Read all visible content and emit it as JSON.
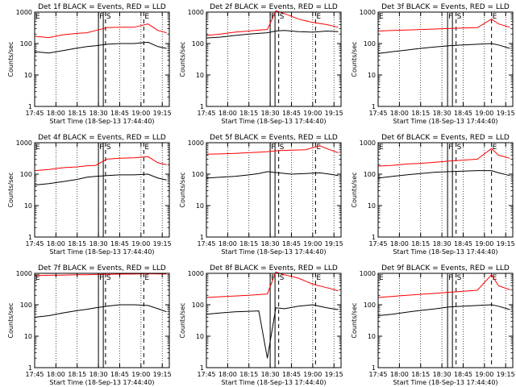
{
  "figure": {
    "x_tick_labels": [
      "17:45",
      "18:00",
      "18:15",
      "18:30",
      "18:45",
      "19:00",
      "19:15"
    ],
    "y_tick_labels": [
      "1",
      "10",
      "100",
      "1000"
    ],
    "x_label": "Start Time (18-Sep-13 17:44:40)",
    "y_label": "Counts/sec",
    "colors": {
      "events": "#000000",
      "lld": "#ff0000",
      "axes": "#000000"
    }
  },
  "chart_data": [
    {
      "type": "line",
      "title": "Det 1f BLACK = Events, RED = LLD",
      "xlabel": "Start Time (18-Sep-13 17:44:40)",
      "ylabel": "Counts/sec",
      "xlim": [
        "17:45",
        "19:20"
      ],
      "ylim": [
        1,
        1000
      ],
      "yscale": "log",
      "markers": [
        {
          "label": "E",
          "x": "17:45"
        },
        {
          "label": "F",
          "x": "18:30"
        },
        {
          "label": "S",
          "x": "18:35"
        },
        {
          "label": "E",
          "x": "19:02"
        }
      ],
      "series": [
        {
          "x": [
            "17:45",
            "17:55",
            "18:05",
            "18:15",
            "18:22",
            "18:28",
            "18:36",
            "18:45",
            "18:55",
            "19:05",
            "19:12",
            "19:18"
          ],
          "values": [
            170,
            155,
            190,
            210,
            220,
            260,
            320,
            330,
            330,
            420,
            260,
            220
          ]
        },
        {
          "x": [
            "17:45",
            "17:55",
            "18:05",
            "18:15",
            "18:22",
            "18:28",
            "18:36",
            "18:45",
            "18:55",
            "19:05",
            "19:12",
            "19:18"
          ],
          "values": [
            55,
            50,
            60,
            72,
            80,
            85,
            95,
            100,
            100,
            110,
            80,
            70
          ]
        }
      ]
    },
    {
      "type": "line",
      "title": "Det 2f BLACK = Events, RED = LLD",
      "xlabel": "Start Time (18-Sep-13 17:44:40)",
      "ylabel": "Counts/sec",
      "xlim": [
        "17:45",
        "19:20"
      ],
      "ylim": [
        1,
        1000
      ],
      "yscale": "log",
      "markers": [
        {
          "label": "F",
          "x": "18:30"
        },
        {
          "label": "S",
          "x": "18:36"
        },
        {
          "label": "E",
          "x": "19:02"
        }
      ],
      "series": [
        {
          "x": [
            "17:45",
            "17:55",
            "18:05",
            "18:15",
            "18:22",
            "18:28",
            "18:34",
            "18:40",
            "18:50",
            "19:00",
            "19:10",
            "19:18"
          ],
          "values": [
            180,
            200,
            230,
            250,
            270,
            280,
            1100,
            900,
            600,
            470,
            400,
            330
          ]
        },
        {
          "x": [
            "17:45",
            "17:55",
            "18:05",
            "18:15",
            "18:22",
            "18:28",
            "18:34",
            "18:40",
            "18:50",
            "19:00",
            "19:10",
            "19:18"
          ],
          "values": [
            150,
            160,
            180,
            200,
            210,
            220,
            250,
            260,
            240,
            230,
            250,
            240
          ]
        }
      ]
    },
    {
      "type": "line",
      "title": "Det 3f BLACK = Events, RED = LLD",
      "xlabel": "Start Time (18-Sep-13 17:44:40)",
      "ylabel": "Counts/sec",
      "xlim": [
        "17:45",
        "19:20"
      ],
      "ylim": [
        1,
        1000
      ],
      "yscale": "log",
      "markers": [
        {
          "label": "E",
          "x": "17:45"
        },
        {
          "label": "F",
          "x": "18:34"
        },
        {
          "label": "S",
          "x": "18:40"
        },
        {
          "label": "E",
          "x": "19:05"
        }
      ],
      "series": [
        {
          "x": [
            "17:45",
            "17:55",
            "18:05",
            "18:15",
            "18:25",
            "18:35",
            "18:45",
            "18:55",
            "19:05",
            "19:10",
            "19:18"
          ],
          "values": [
            250,
            260,
            270,
            280,
            290,
            300,
            310,
            320,
            600,
            420,
            330
          ]
        },
        {
          "x": [
            "17:45",
            "17:55",
            "18:05",
            "18:15",
            "18:25",
            "18:35",
            "18:45",
            "18:55",
            "19:05",
            "19:10",
            "19:18"
          ],
          "values": [
            48,
            55,
            62,
            70,
            78,
            85,
            90,
            95,
            100,
            90,
            70
          ]
        }
      ]
    },
    {
      "type": "line",
      "title": "Det 4f BLACK = Events, RED = LLD",
      "xlabel": "Start Time (18-Sep-13 17:44:40)",
      "ylabel": "Counts/sec",
      "xlim": [
        "17:45",
        "19:20"
      ],
      "ylim": [
        1,
        1000
      ],
      "yscale": "log",
      "markers": [
        {
          "label": "E",
          "x": "17:45"
        },
        {
          "label": "F",
          "x": "18:30"
        },
        {
          "label": "S",
          "x": "18:35"
        },
        {
          "label": "E",
          "x": "19:02"
        }
      ],
      "series": [
        {
          "x": [
            "17:45",
            "17:55",
            "18:05",
            "18:15",
            "18:22",
            "18:28",
            "18:36",
            "18:45",
            "18:55",
            "19:05",
            "19:12",
            "19:18"
          ],
          "values": [
            130,
            140,
            160,
            170,
            185,
            190,
            300,
            320,
            330,
            360,
            230,
            200
          ]
        },
        {
          "x": [
            "17:45",
            "17:55",
            "18:05",
            "18:15",
            "18:22",
            "18:28",
            "18:36",
            "18:45",
            "18:55",
            "19:05",
            "19:12",
            "19:18"
          ],
          "values": [
            45,
            50,
            58,
            68,
            80,
            85,
            90,
            95,
            95,
            100,
            75,
            65
          ]
        }
      ]
    },
    {
      "type": "line",
      "title": "Det 5f BLACK = Events, RED = LLD",
      "xlabel": "Start Time (18-Sep-13 17:44:40)",
      "ylabel": "Counts/sec",
      "xlim": [
        "17:45",
        "19:20"
      ],
      "ylim": [
        1,
        1000
      ],
      "yscale": "log",
      "markers": [
        {
          "label": "F",
          "x": "18:30"
        },
        {
          "label": "S",
          "x": "18:36"
        },
        {
          "label": "E",
          "x": "19:02"
        }
      ],
      "series": [
        {
          "x": [
            "17:45",
            "17:55",
            "18:05",
            "18:15",
            "18:22",
            "18:28",
            "18:36",
            "18:45",
            "18:55",
            "19:05",
            "19:12",
            "19:18"
          ],
          "values": [
            430,
            440,
            460,
            480,
            500,
            520,
            560,
            580,
            600,
            800,
            600,
            480
          ]
        },
        {
          "x": [
            "17:45",
            "17:55",
            "18:05",
            "18:15",
            "18:22",
            "18:28",
            "18:36",
            "18:45",
            "18:55",
            "19:05",
            "19:12",
            "19:18"
          ],
          "values": [
            75,
            80,
            85,
            95,
            105,
            120,
            110,
            100,
            105,
            110,
            100,
            90
          ]
        }
      ]
    },
    {
      "type": "line",
      "title": "Det 6f BLACK = Events, RED = LLD",
      "xlabel": "Start Time (18-Sep-13 17:44:40)",
      "ylabel": "Counts/sec",
      "xlim": [
        "17:45",
        "19:20"
      ],
      "ylim": [
        1,
        1000
      ],
      "yscale": "log",
      "markers": [
        {
          "label": "E",
          "x": "17:45"
        },
        {
          "label": "F",
          "x": "18:34"
        },
        {
          "label": "S",
          "x": "18:40"
        },
        {
          "label": "E",
          "x": "19:05"
        }
      ],
      "series": [
        {
          "x": [
            "17:45",
            "17:55",
            "18:05",
            "18:15",
            "18:25",
            "18:35",
            "18:45",
            "18:55",
            "19:05",
            "19:10",
            "19:18"
          ],
          "values": [
            180,
            190,
            210,
            220,
            240,
            260,
            280,
            300,
            650,
            400,
            320
          ]
        },
        {
          "x": [
            "17:45",
            "17:55",
            "18:05",
            "18:15",
            "18:25",
            "18:35",
            "18:45",
            "18:55",
            "19:05",
            "19:10",
            "19:18"
          ],
          "values": [
            75,
            85,
            95,
            105,
            115,
            120,
            125,
            130,
            130,
            110,
            90
          ]
        }
      ]
    },
    {
      "type": "line",
      "title": "Det 7f BLACK = Events, RED = LLD",
      "xlabel": "Start Time (18-Sep-13 17:44:40)",
      "ylabel": "Counts/sec",
      "xlim": [
        "17:45",
        "19:20"
      ],
      "ylim": [
        1,
        1000
      ],
      "yscale": "log",
      "markers": [
        {
          "label": "E",
          "x": "17:45"
        },
        {
          "label": "F",
          "x": "18:30"
        },
        {
          "label": "S",
          "x": "18:35"
        },
        {
          "label": "E",
          "x": "19:02"
        }
      ],
      "series": [
        {
          "x": [
            "17:45",
            "17:55",
            "18:05",
            "18:15",
            "18:22",
            "18:28",
            "18:36",
            "18:45",
            "18:55",
            "19:05",
            "19:12",
            "19:18"
          ],
          "values": [
            850,
            870,
            880,
            900,
            900,
            920,
            930,
            940,
            950,
            970,
            960,
            950
          ]
        },
        {
          "x": [
            "17:45",
            "17:55",
            "18:05",
            "18:15",
            "18:22",
            "18:28",
            "18:36",
            "18:45",
            "18:55",
            "19:05",
            "19:12",
            "19:18"
          ],
          "values": [
            40,
            45,
            55,
            65,
            72,
            80,
            90,
            100,
            100,
            95,
            75,
            60
          ]
        }
      ]
    },
    {
      "type": "line",
      "title": "Det 8f BLACK = Events, RED = LLD",
      "xlabel": "Start Time (18-Sep-13 17:44:40)",
      "ylabel": "Counts/sec",
      "xlim": [
        "17:45",
        "19:20"
      ],
      "ylim": [
        1,
        1000
      ],
      "yscale": "log",
      "markers": [
        {
          "label": "F",
          "x": "18:30"
        },
        {
          "label": "S",
          "x": "18:36"
        },
        {
          "label": "E",
          "x": "19:02"
        }
      ],
      "series": [
        {
          "x": [
            "17:45",
            "17:55",
            "18:05",
            "18:15",
            "18:22",
            "18:28",
            "18:34",
            "18:40",
            "18:50",
            "19:00",
            "19:10",
            "19:18"
          ],
          "values": [
            170,
            180,
            190,
            200,
            210,
            220,
            1100,
            900,
            700,
            450,
            350,
            280
          ]
        },
        {
          "x": [
            "17:45",
            "17:55",
            "18:05",
            "18:15",
            "18:22",
            "18:28",
            "18:34",
            "18:40",
            "18:50",
            "19:00",
            "19:10",
            "19:18"
          ],
          "values": [
            50,
            55,
            60,
            62,
            64,
            2,
            80,
            75,
            90,
            100,
            80,
            70
          ]
        }
      ]
    },
    {
      "type": "line",
      "title": "Det 9f BLACK = Events, RED = LLD",
      "xlabel": "Start Time (18-Sep-13 17:44:40)",
      "ylabel": "Counts/sec",
      "xlim": [
        "17:45",
        "19:20"
      ],
      "ylim": [
        1,
        1000
      ],
      "yscale": "log",
      "markers": [
        {
          "label": "E",
          "x": "17:45"
        },
        {
          "label": "F",
          "x": "18:34"
        },
        {
          "label": "S",
          "x": "18:40"
        },
        {
          "label": "E",
          "x": "19:05"
        }
      ],
      "series": [
        {
          "x": [
            "17:45",
            "17:55",
            "18:05",
            "18:15",
            "18:25",
            "18:35",
            "18:45",
            "18:55",
            "19:05",
            "19:10",
            "19:18"
          ],
          "values": [
            170,
            185,
            200,
            215,
            230,
            250,
            270,
            290,
            900,
            400,
            300
          ]
        },
        {
          "x": [
            "17:45",
            "17:55",
            "18:05",
            "18:15",
            "18:25",
            "18:35",
            "18:45",
            "18:55",
            "19:05",
            "19:10",
            "19:18"
          ],
          "values": [
            45,
            50,
            58,
            66,
            74,
            85,
            90,
            95,
            100,
            90,
            70
          ]
        }
      ]
    }
  ]
}
